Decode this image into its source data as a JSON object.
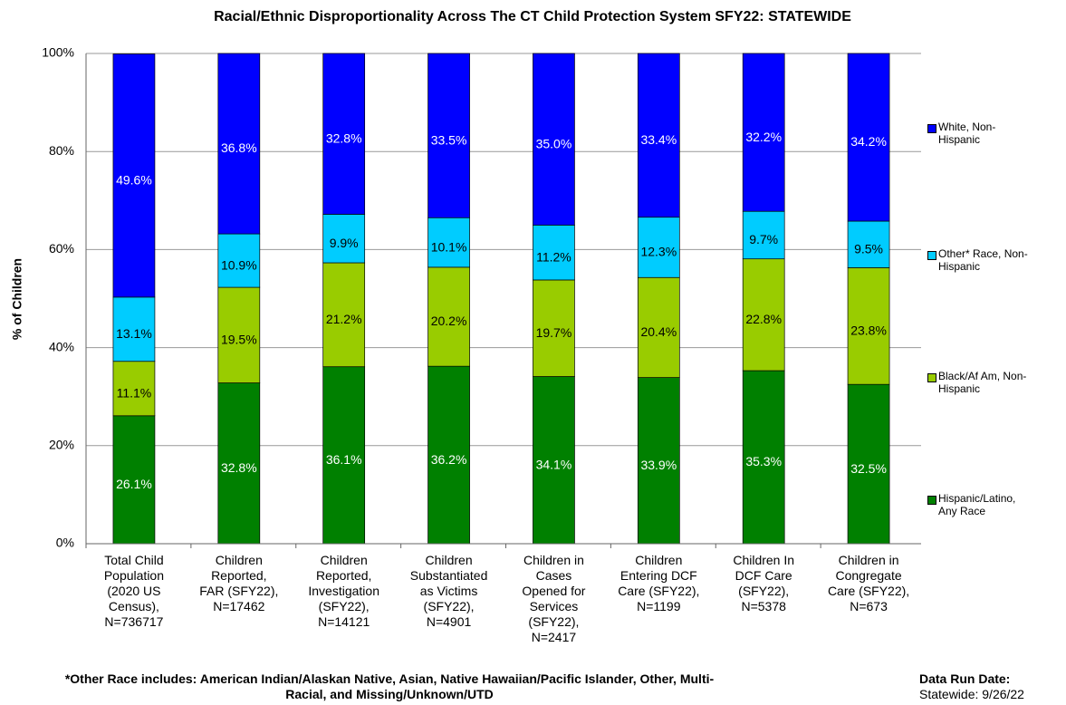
{
  "chart_data": {
    "type": "stacked_bar",
    "title": "Racial/Ethnic Disproportionality Across The CT Child Protection System SFY22: STATEWIDE",
    "y_label": "% of Children",
    "categories": [
      "Total Child\nPopulation\n(2020 US\nCensus),\nN=736717",
      "Children\nReported,\nFAR (SFY22),\nN=17462",
      "Children\nReported,\nInvestigation\n(SFY22),\nN=14121",
      "Children\nSubstantiated\nas Victims\n(SFY22),\nN=4901",
      "Children in\nCases\nOpened for\nServices\n(SFY22),\nN=2417",
      "Children\nEntering DCF\nCare (SFY22),\nN=1199",
      "Children In\nDCF Care\n(SFY22),\nN=5378",
      "Children in\nCongregate\nCare (SFY22),\nN=673"
    ],
    "series": [
      {
        "name": "Hispanic/Latino,\nAny Race",
        "color": "#008000",
        "label_color": "#ffffff",
        "values": [
          26.1,
          32.8,
          36.1,
          36.2,
          34.1,
          33.9,
          35.3,
          32.5
        ],
        "value_labels": [
          "26.1%",
          "32.8%",
          "36.1%",
          "36.2%",
          "34.1%",
          "33.9%",
          "35.3%",
          "32.5%"
        ]
      },
      {
        "name": "Black/Af Am, Non-\nHispanic",
        "color": "#99cc00",
        "label_color": "#000000",
        "values": [
          11.1,
          19.5,
          21.2,
          20.2,
          19.7,
          20.4,
          22.8,
          23.8
        ],
        "value_labels": [
          "11.1%",
          "19.5%",
          "21.2%",
          "20.2%",
          "19.7%",
          "20.4%",
          "22.8%",
          "23.8%"
        ]
      },
      {
        "name": "Other* Race, Non-\nHispanic",
        "color": "#00ccff",
        "label_color": "#000000",
        "values": [
          13.1,
          10.9,
          9.9,
          10.1,
          11.2,
          12.3,
          9.7,
          9.5
        ],
        "value_labels": [
          "13.1%",
          "10.9%",
          "9.9%",
          "10.1%",
          "11.2%",
          "12.3%",
          "9.7%",
          "9.5%"
        ]
      },
      {
        "name": "White, Non-\nHispanic",
        "color": "#0000ff",
        "label_color": "#ffffff",
        "values": [
          49.6,
          36.8,
          32.8,
          33.5,
          35.0,
          33.4,
          32.2,
          34.2
        ],
        "value_labels": [
          "49.6%",
          "36.8%",
          "32.8%",
          "33.5%",
          "35.0%",
          "33.4%",
          "32.2%",
          "34.2%"
        ]
      }
    ],
    "ylim": [
      0,
      100
    ],
    "yticks": [
      {
        "value": 0,
        "label": "0%"
      },
      {
        "value": 20,
        "label": "20%"
      },
      {
        "value": 40,
        "label": "40%"
      },
      {
        "value": 60,
        "label": "60%"
      },
      {
        "value": 80,
        "label": "80%"
      },
      {
        "value": 100,
        "label": "100%"
      }
    ],
    "grid": true,
    "legend": "right",
    "footnote": "*Other Race includes:  American Indian/Alaskan Native, Asian, Native Hawaiian/Pacific Islander, Other, Multi-Racial, and Missing/Unknown/UTD",
    "run_date_title": "Data Run Date:",
    "run_date": "Statewide: 9/26/22"
  }
}
